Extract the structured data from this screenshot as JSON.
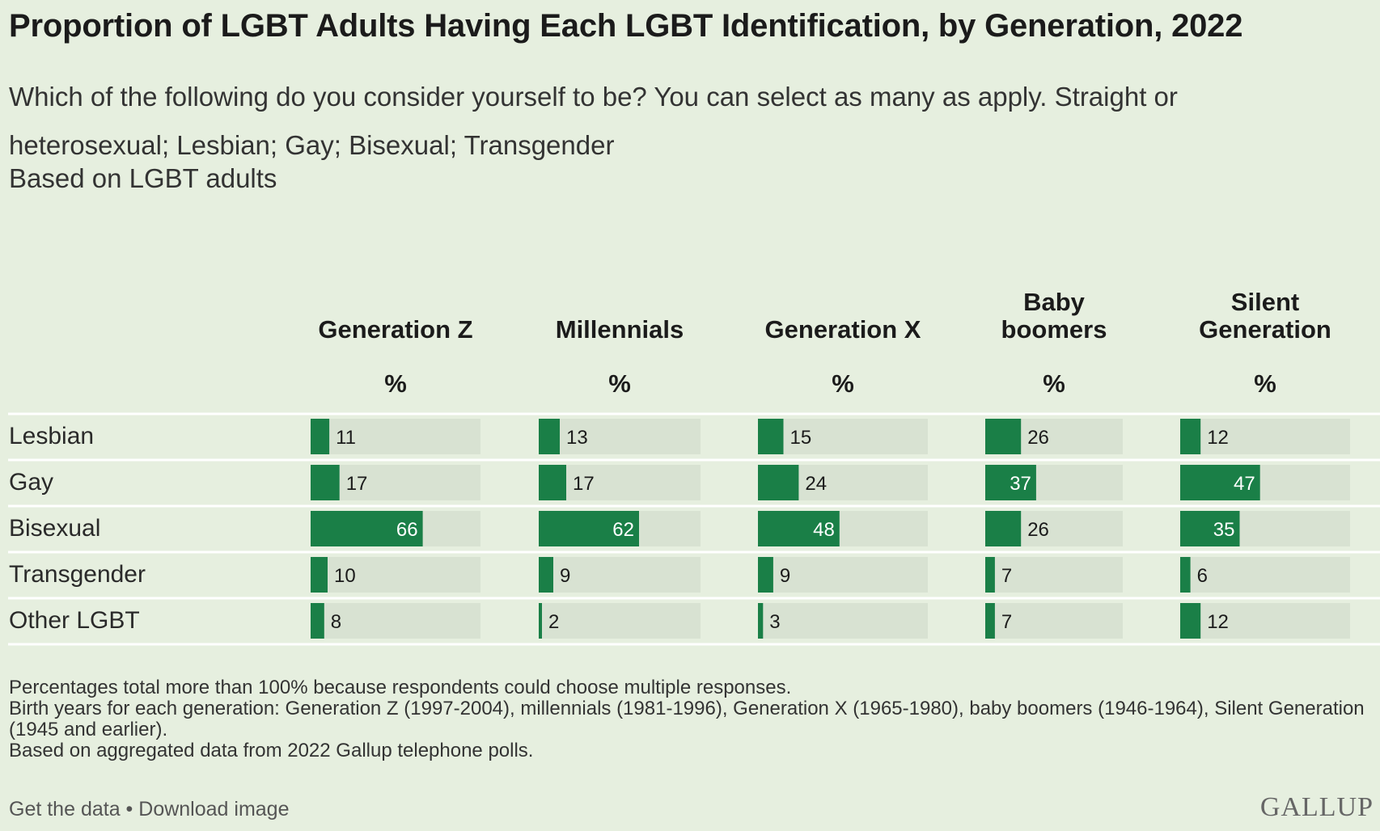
{
  "chart_data": {
    "type": "bar",
    "title": "Proportion of LGBT Adults Having Each LGBT Identification, by Generation, 2022",
    "subtitle": "Which of the following do you consider yourself to be? You can select as many as apply. Straight or heterosexual; Lesbian; Gay; Bisexual; Transgender",
    "note": "Based on LGBT adults",
    "unit_label": "%",
    "categories": [
      "Lesbian",
      "Gay",
      "Bisexual",
      "Transgender",
      "Other LGBT"
    ],
    "series": [
      {
        "name": "Generation Z",
        "name_lines": [
          "Generation Z"
        ],
        "values": [
          11,
          17,
          66,
          10,
          8
        ]
      },
      {
        "name": "Millennials",
        "name_lines": [
          "Millennials"
        ],
        "values": [
          13,
          17,
          62,
          9,
          2
        ]
      },
      {
        "name": "Generation X",
        "name_lines": [
          "Generation X"
        ],
        "values": [
          15,
          24,
          48,
          9,
          3
        ]
      },
      {
        "name": "Baby boomers",
        "name_lines": [
          "Baby",
          "boomers"
        ],
        "values": [
          26,
          37,
          26,
          7,
          7
        ]
      },
      {
        "name": "Silent Generation",
        "name_lines": [
          "Silent",
          "Generation"
        ],
        "values": [
          12,
          47,
          35,
          6,
          12
        ]
      }
    ],
    "ylim": [
      0,
      100
    ],
    "colors": {
      "bar": "#1a7f47",
      "track": "#d8e2d2",
      "rule": "#ffffff"
    }
  },
  "footnotes": [
    "Percentages total more than 100% because respondents could choose multiple responses.",
    "Birth years for each generation: Generation Z (1997-2004), millennials (1981-1996), Generation X (1965-1980), baby boomers (1946-1964), Silent Generation (1945 and earlier).",
    "Based on aggregated data from 2022 Gallup telephone polls."
  ],
  "links": {
    "get_data": "Get the data",
    "separator": " • ",
    "download": "Download image"
  },
  "logo": "GALLUP"
}
